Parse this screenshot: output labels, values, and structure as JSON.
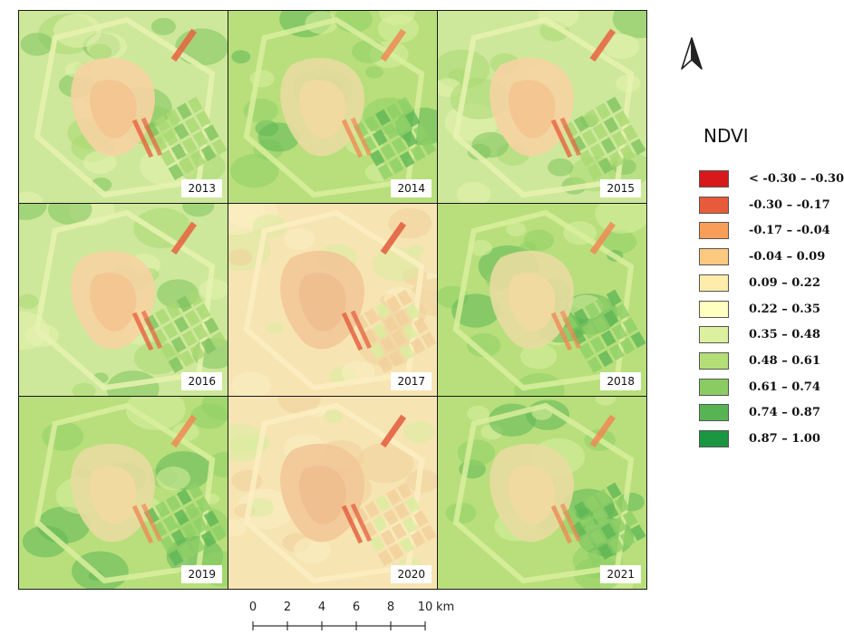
{
  "panels": [
    {
      "year": "2013",
      "tone": "mixed"
    },
    {
      "year": "2014",
      "tone": "green"
    },
    {
      "year": "2015",
      "tone": "mixed"
    },
    {
      "year": "2016",
      "tone": "mixed"
    },
    {
      "year": "2017",
      "tone": "dry"
    },
    {
      "year": "2018",
      "tone": "green"
    },
    {
      "year": "2019",
      "tone": "green"
    },
    {
      "year": "2020",
      "tone": "dry"
    },
    {
      "year": "2021",
      "tone": "green"
    }
  ],
  "legend": {
    "title": "NDVI",
    "classes": [
      {
        "label": "< -0.30 – -0.30",
        "color": "#d7191c"
      },
      {
        "label": "-0.30 – -0.17",
        "color": "#e85b3a"
      },
      {
        "label": "-0.17 – -0.04",
        "color": "#f99e59"
      },
      {
        "label": "-0.04 – 0.09",
        "color": "#fdc980"
      },
      {
        "label": "0.09 – 0.22",
        "color": "#feedaa"
      },
      {
        "label": "0.22 – 0.35",
        "color": "#ffffc0"
      },
      {
        "label": "0.35 – 0.48",
        "color": "#dcf09e"
      },
      {
        "label": "0.48 – 0.61",
        "color": "#b3df76"
      },
      {
        "label": "0.61 – 0.74",
        "color": "#8acc62"
      },
      {
        "label": "0.74 – 0.87",
        "color": "#58b453"
      },
      {
        "label": "0.87 – 1.00",
        "color": "#1a9641"
      }
    ]
  },
  "north_arrow": {
    "icon": "north-arrow-icon"
  },
  "scale_bar": {
    "ticks": [
      "0",
      "2",
      "4",
      "6",
      "8",
      "10"
    ],
    "unit": "km"
  }
}
